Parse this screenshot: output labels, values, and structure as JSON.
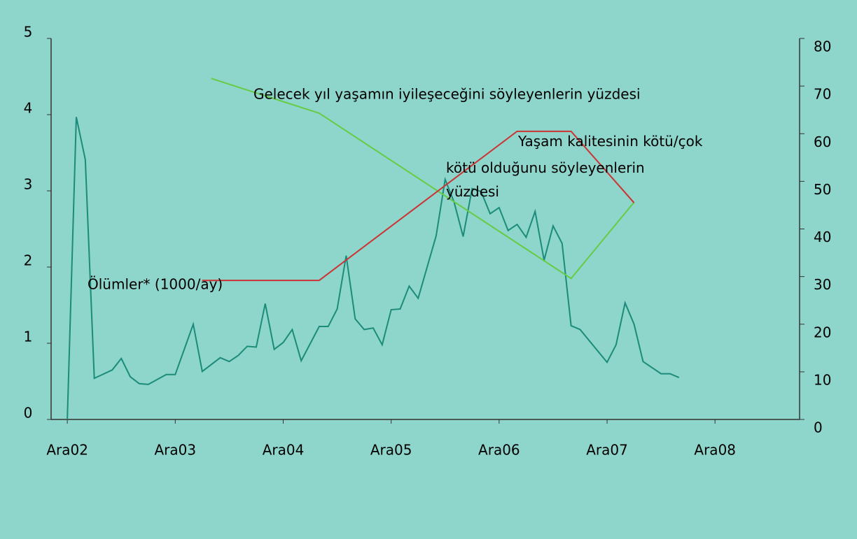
{
  "chart_data": {
    "type": "line",
    "xlim": [
      -1.8,
      81.4
    ],
    "xticks": [
      {
        "value": 0,
        "label": "Ara02"
      },
      {
        "value": 12,
        "label": "Ara03"
      },
      {
        "value": 24,
        "label": "Ara04"
      },
      {
        "value": 36,
        "label": "Ara05"
      },
      {
        "value": 48,
        "label": "Ara06"
      },
      {
        "value": 60,
        "label": "Ara07"
      },
      {
        "value": 72,
        "label": "Ara08"
      }
    ],
    "ylim": [
      0,
      5
    ],
    "yticks": [
      0,
      1,
      2,
      3,
      4,
      5
    ],
    "y2lim": [
      0,
      80
    ],
    "y2ticks": [
      0,
      10,
      20,
      30,
      40,
      50,
      60,
      70,
      80
    ],
    "series": [
      {
        "name": "Ölümler*  (1000/ay)",
        "color": "#1b8c7a",
        "axis": "y",
        "x": [
          0,
          1,
          2,
          3,
          5,
          6,
          7,
          8,
          9,
          11,
          12,
          14,
          15,
          17,
          18,
          19,
          20,
          21,
          22,
          23,
          24,
          25,
          26,
          28,
          29,
          30,
          31,
          32,
          33,
          34,
          35,
          36,
          37,
          38,
          39,
          41,
          42,
          43,
          44,
          45,
          46,
          47,
          48,
          49,
          50,
          51,
          52,
          53,
          54,
          55,
          56,
          57,
          60,
          61,
          62,
          63,
          64,
          66,
          67,
          68
        ],
        "values": [
          0,
          3.97,
          3.41,
          0.54,
          0.65,
          0.8,
          0.56,
          0.47,
          0.46,
          0.59,
          0.59,
          1.25,
          0.63,
          0.81,
          0.76,
          0.84,
          0.96,
          0.95,
          1.52,
          0.92,
          1.01,
          1.18,
          0.77,
          1.22,
          1.22,
          1.45,
          2.15,
          1.32,
          1.18,
          1.2,
          0.98,
          1.44,
          1.45,
          1.75,
          1.59,
          2.41,
          3.15,
          2.85,
          2.4,
          3.03,
          2.99,
          2.7,
          2.78,
          2.48,
          2.56,
          2.39,
          2.73,
          2.09,
          2.54,
          2.31,
          1.23,
          1.18,
          0.75,
          0.98,
          1.53,
          1.25,
          0.76,
          0.6,
          0.6,
          0.55
        ]
      },
      {
        "name": "Gelecek yıl yaşamın iyileşeceğini söyleyenlerin yüzdesi",
        "color": "#66cc44",
        "axis": "y2",
        "x": [
          16,
          28,
          56,
          63
        ],
        "values": [
          71.6,
          64.3,
          29.6,
          45.6
        ]
      },
      {
        "name": "Yaşam kalitesinin kötü/çok kötü olduğunu söyleyenlerin yüzdesi",
        "color": "#cc3333",
        "axis": "y2",
        "x": [
          15,
          28,
          50,
          56,
          63
        ],
        "values": [
          29.2,
          29.2,
          60.5,
          60.5,
          45.5
        ]
      }
    ]
  }
}
